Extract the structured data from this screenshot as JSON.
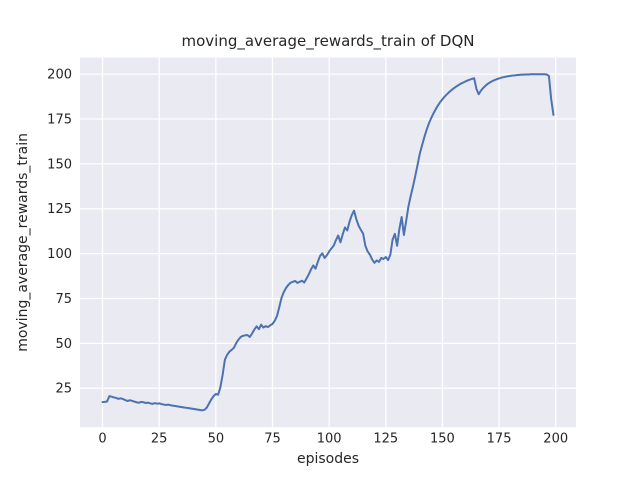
{
  "chart_data": {
    "type": "line",
    "title": "moving_average_rewards_train of DQN",
    "xlabel": "episodes",
    "ylabel": "moving_average_rewards_train",
    "series_name": "moving average rewards (train) of DQN",
    "xticks": [
      0,
      25,
      50,
      75,
      100,
      125,
      150,
      175,
      200
    ],
    "yticks": [
      25,
      50,
      75,
      100,
      125,
      150,
      175,
      200
    ],
    "xlim": [
      -9.95,
      208.95
    ],
    "ylim": [
      3.3,
      209.2
    ],
    "grid": true,
    "legend": "none",
    "colors": {
      "line": "#4c72b0",
      "plot_background": "#eaeaf2",
      "grid": "#ffffff",
      "figure_background": "#ffffff",
      "text": "#262626"
    },
    "x": [
      0,
      1,
      2,
      3,
      4,
      5,
      6,
      7,
      8,
      9,
      10,
      11,
      12,
      13,
      14,
      15,
      16,
      17,
      18,
      19,
      20,
      21,
      22,
      23,
      24,
      25,
      26,
      27,
      28,
      29,
      30,
      31,
      32,
      33,
      34,
      35,
      36,
      37,
      38,
      39,
      40,
      41,
      42,
      43,
      44,
      45,
      46,
      47,
      48,
      49,
      50,
      51,
      52,
      53,
      54,
      55,
      56,
      57,
      58,
      59,
      60,
      61,
      62,
      63,
      64,
      65,
      66,
      67,
      68,
      69,
      70,
      71,
      72,
      73,
      74,
      75,
      76,
      77,
      78,
      79,
      80,
      81,
      82,
      83,
      84,
      85,
      86,
      87,
      88,
      89,
      90,
      91,
      92,
      93,
      94,
      95,
      96,
      97,
      98,
      99,
      100,
      101,
      102,
      103,
      104,
      105,
      106,
      107,
      108,
      109,
      110,
      111,
      112,
      113,
      114,
      115,
      116,
      117,
      118,
      119,
      120,
      121,
      122,
      123,
      124,
      125,
      126,
      127,
      128,
      129,
      130,
      131,
      132,
      133,
      134,
      135,
      136,
      137,
      138,
      139,
      140,
      141,
      142,
      143,
      144,
      145,
      146,
      147,
      148,
      149,
      150,
      151,
      152,
      153,
      154,
      155,
      156,
      157,
      158,
      159,
      160,
      161,
      162,
      163,
      164,
      165,
      166,
      167,
      168,
      169,
      170,
      171,
      172,
      173,
      174,
      175,
      176,
      177,
      178,
      179,
      180,
      181,
      182,
      183,
      184,
      185,
      186,
      187,
      188,
      189,
      190,
      191,
      192,
      193,
      194,
      195,
      196,
      197,
      198,
      199
    ],
    "values": [
      17.3,
      17.4,
      17.6,
      20.6,
      20.3,
      19.9,
      19.6,
      19.1,
      19.4,
      19.0,
      18.4,
      17.9,
      18.3,
      18.0,
      17.6,
      17.2,
      16.9,
      17.4,
      17.2,
      16.8,
      17.0,
      16.6,
      16.3,
      16.7,
      16.4,
      16.6,
      16.2,
      15.9,
      15.7,
      15.9,
      15.5,
      15.3,
      15.1,
      14.9,
      14.7,
      14.5,
      14.3,
      14.1,
      13.9,
      13.7,
      13.5,
      13.3,
      13.1,
      12.9,
      12.7,
      13.0,
      14.2,
      16.5,
      18.8,
      20.6,
      21.8,
      21.4,
      25.5,
      32.5,
      40.9,
      43.6,
      45.4,
      46.4,
      47.6,
      50.2,
      52.1,
      53.6,
      54.2,
      54.5,
      54.6,
      53.6,
      55.5,
      57.7,
      59.5,
      57.9,
      60.4,
      58.8,
      59.6,
      59.1,
      60.1,
      60.8,
      62.6,
      65.3,
      70.2,
      75.4,
      78.6,
      80.9,
      82.6,
      83.8,
      84.3,
      84.8,
      83.7,
      84.3,
      84.9,
      83.9,
      86.1,
      88.4,
      91.2,
      93.4,
      91.6,
      95.4,
      98.7,
      100.2,
      97.6,
      99.1,
      101.2,
      102.9,
      104.4,
      107.5,
      110.1,
      106.3,
      110.8,
      114.6,
      112.9,
      117.8,
      121.5,
      123.9,
      119.2,
      115.6,
      113.2,
      111.1,
      104.3,
      101.2,
      99.4,
      96.7,
      94.9,
      96.2,
      95.4,
      97.6,
      97.0,
      98.1,
      96.4,
      99.3,
      107.8,
      111.0,
      104.4,
      113.7,
      120.4,
      110.4,
      118.2,
      126.3,
      132.1,
      137.4,
      143.2,
      149.3,
      155.6,
      160.3,
      164.8,
      168.9,
      172.4,
      175.4,
      178.0,
      180.4,
      182.5,
      184.4,
      186.0,
      187.5,
      188.8,
      190.0,
      191.1,
      192.1,
      193.0,
      193.8,
      194.6,
      195.2,
      195.8,
      196.4,
      196.9,
      197.3,
      197.7,
      191.8,
      188.8,
      190.8,
      192.3,
      193.5,
      194.6,
      195.4,
      196.1,
      196.7,
      197.2,
      197.6,
      198.0,
      198.3,
      198.6,
      198.8,
      199.0,
      199.2,
      199.3,
      199.5,
      199.6,
      199.7,
      199.7,
      199.8,
      199.8,
      199.9,
      199.9,
      199.9,
      199.9,
      199.9,
      199.9,
      199.9,
      199.8,
      199.0,
      186.0,
      177.3
    ]
  }
}
